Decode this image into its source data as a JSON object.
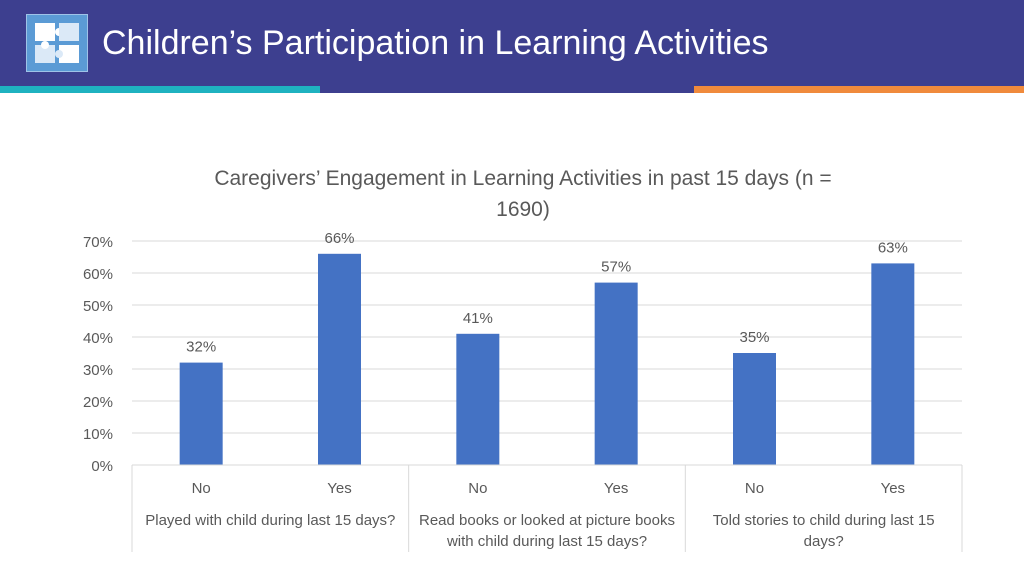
{
  "header": {
    "title": "Children’s Participation in Learning Activities",
    "logo_icon": "puzzle-pieces-icon",
    "colors": {
      "banner": "#3d3f8f",
      "teal": "#1fb2c0",
      "orange": "#f08a3c"
    }
  },
  "chart_data": {
    "type": "bar",
    "title_lines": [
      "Caregivers’ Engagement in Learning Activities in past 15 days (n =",
      "1690)"
    ],
    "groups": [
      {
        "label_lines": [
          "Played with child during last 15 days?"
        ],
        "categories": [
          "No",
          "Yes"
        ],
        "values": [
          32,
          66
        ]
      },
      {
        "label_lines": [
          "Read books or looked at picture books",
          "with child during last 15 days?"
        ],
        "categories": [
          "No",
          "Yes"
        ],
        "values": [
          41,
          57
        ]
      },
      {
        "label_lines": [
          "Told stories to child during last 15",
          "days?"
        ],
        "categories": [
          "No",
          "Yes"
        ],
        "values": [
          35,
          63
        ]
      }
    ],
    "ylim": [
      0,
      70
    ],
    "yticks": [
      0,
      10,
      20,
      30,
      40,
      50,
      60,
      70
    ],
    "tick_labels": [
      "0%",
      "10%",
      "20%",
      "30%",
      "40%",
      "50%",
      "60%",
      "70%"
    ],
    "value_labels": [
      "32%",
      "66%",
      "41%",
      "57%",
      "35%",
      "63%"
    ],
    "bar_color": "#4472c4",
    "grid": true,
    "legend": "none"
  }
}
